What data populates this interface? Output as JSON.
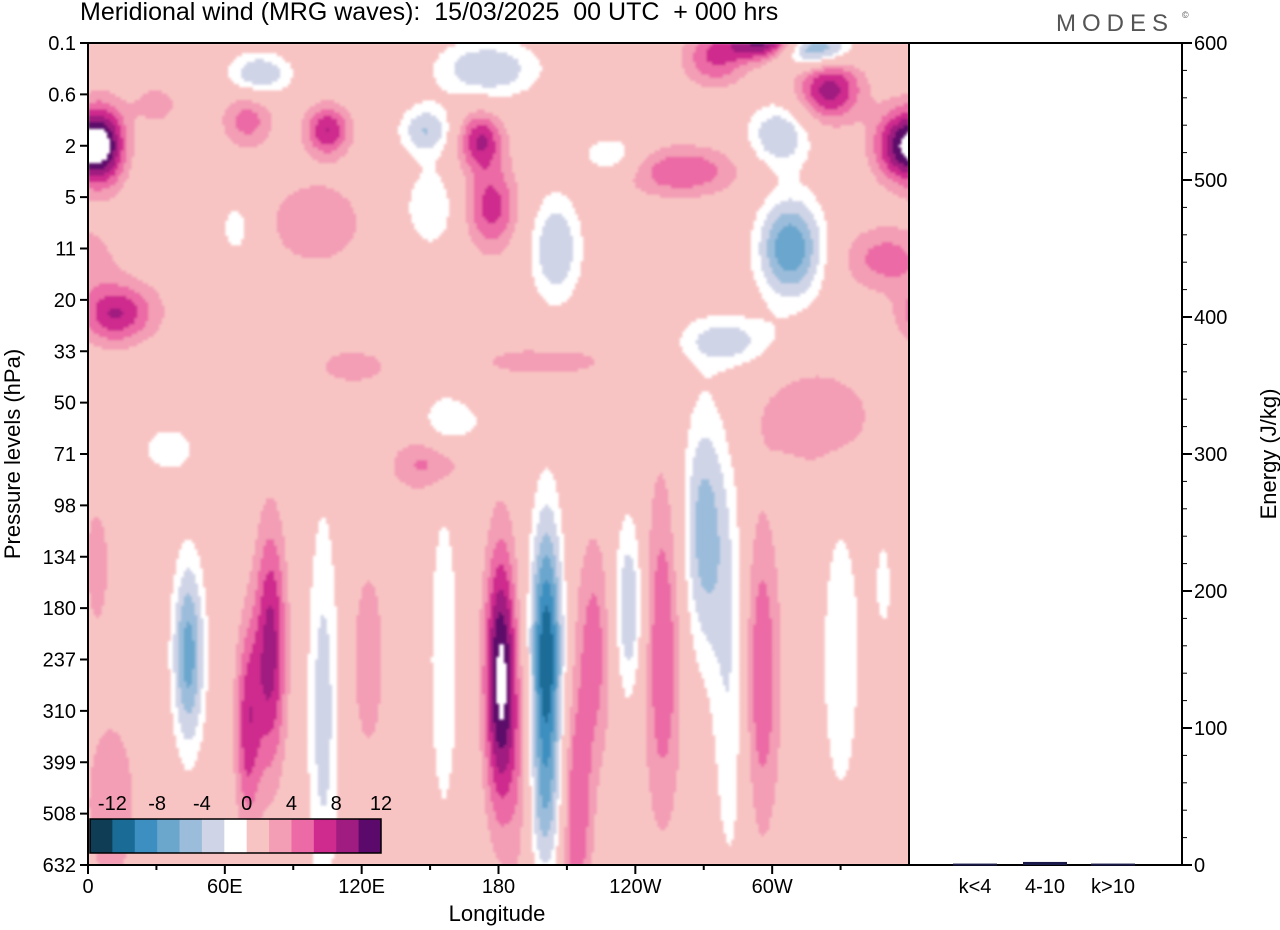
{
  "title": "Meridional wind (MRG waves):  15/03/2025  00 UTC  + 000 hrs",
  "logo": "MODES",
  "logo_mark": "©",
  "colors": {
    "neg": [
      "#0f3d55",
      "#1a6c97",
      "#3c8fc0",
      "#6ba6cd",
      "#9bbddb",
      "#d0d4e7"
    ],
    "zero": "#ffffff",
    "pos": [
      "#f8c4c3",
      "#f39eb5",
      "#ec6aa5",
      "#cf2b8e",
      "#a11c80",
      "#5b0a6b"
    ]
  },
  "chart_data": [
    {
      "type": "heatmap",
      "title": "Meridional wind (MRG waves):  15/03/2025  00 UTC  + 000 hrs",
      "xlabel": "Longitude",
      "ylabel": "Pressure levels (hPa)",
      "x_ticks": [
        "0",
        "60E",
        "120E",
        "180",
        "120W",
        "60W"
      ],
      "x_tick_degrees": [
        0,
        60,
        120,
        180,
        240,
        300
      ],
      "xlim": [
        0,
        360
      ],
      "y_ticks": [
        "0.1",
        "0.6",
        "2",
        "5",
        "11",
        "20",
        "33",
        "50",
        "71",
        "98",
        "134",
        "180",
        "237",
        "310",
        "399",
        "508",
        "632"
      ],
      "colorbar_labels": [
        "-12",
        "-8",
        "-4",
        "0",
        "4",
        "8",
        "12"
      ],
      "colorbar_levels": [
        -14,
        -12,
        -10,
        -8,
        -6,
        -4,
        -2,
        2,
        4,
        6,
        8,
        10,
        12,
        14
      ],
      "features": [
        {
          "lon": 7,
          "lev": 2.0,
          "v": 11,
          "w": 7,
          "h": 0.55
        },
        {
          "lon": 20,
          "lev": 5.2,
          "v": 3,
          "w": 12,
          "h": 0.45
        },
        {
          "lon": 30,
          "lev": 1.2,
          "v": 3,
          "w": 8,
          "h": 0.3
        },
        {
          "lon": 70,
          "lev": 1.5,
          "v": 5,
          "w": 8,
          "h": 0.4
        },
        {
          "lon": 105,
          "lev": 1.7,
          "v": 8,
          "w": 7,
          "h": 0.35
        },
        {
          "lon": 172,
          "lev": 1.9,
          "v": 8,
          "w": 7,
          "h": 0.4
        },
        {
          "lon": 177,
          "lev": 3.2,
          "v": 7,
          "w": 8,
          "h": 0.6
        },
        {
          "lon": 260,
          "lev": 2.5,
          "v": 6,
          "w": 18,
          "h": 0.35
        },
        {
          "lon": 325,
          "lev": 0.9,
          "v": 9,
          "w": 10,
          "h": 0.45
        },
        {
          "lon": 355,
          "lev": 2.0,
          "v": 9,
          "w": 8,
          "h": 0.5
        },
        {
          "lon": 300,
          "lev": 0.0,
          "v": 14,
          "w": 12,
          "h": 0.25
        },
        {
          "lon": 275,
          "lev": 0.3,
          "v": 6,
          "w": 10,
          "h": 0.4
        },
        {
          "lon": 100,
          "lev": 3.5,
          "v": 4,
          "w": 15,
          "h": 0.6
        },
        {
          "lon": 350,
          "lev": 4.2,
          "v": 5,
          "w": 14,
          "h": 0.45
        },
        {
          "lon": 10,
          "lev": 5.3,
          "v": 6,
          "w": 10,
          "h": 0.4
        },
        {
          "lon": 115,
          "lev": 6.3,
          "v": 3,
          "w": 15,
          "h": 0.3
        },
        {
          "lon": 200,
          "lev": 6.2,
          "v": 3,
          "w": 25,
          "h": 0.25
        },
        {
          "lon": 320,
          "lev": 7.3,
          "v": 4,
          "w": 18,
          "h": 0.7
        },
        {
          "lon": 150,
          "lev": 8.2,
          "v": 5,
          "w": 12,
          "h": 0.4
        },
        {
          "lon": 60,
          "lev": 6.2,
          "v": 1.5,
          "w": 10,
          "h": 0.3
        },
        {
          "lon": 75,
          "lev": 0.6,
          "v": -6,
          "w": 10,
          "h": 0.3
        },
        {
          "lon": 175,
          "lev": 0.5,
          "v": -6,
          "w": 16,
          "h": 0.4
        },
        {
          "lon": 148,
          "lev": 1.7,
          "v": -6,
          "w": 8,
          "h": 0.35
        },
        {
          "lon": 205,
          "lev": 4.0,
          "v": -6,
          "w": 8,
          "h": 0.75
        },
        {
          "lon": 150,
          "lev": 3.2,
          "v": -4,
          "w": 8,
          "h": 0.55
        },
        {
          "lon": 315,
          "lev": 0.1,
          "v": -13,
          "w": 12,
          "h": 0.25
        },
        {
          "lon": 303,
          "lev": 1.8,
          "v": -6,
          "w": 10,
          "h": 0.45
        },
        {
          "lon": 308,
          "lev": 4.0,
          "v": -10,
          "w": 10,
          "h": 0.7
        },
        {
          "lon": 230,
          "lev": 2.2,
          "v": -4,
          "w": 10,
          "h": 0.3
        },
        {
          "lon": 65,
          "lev": 3.6,
          "v": -3,
          "w": 6,
          "h": 0.45
        },
        {
          "lon": 280,
          "lev": 5.8,
          "v": -5,
          "w": 15,
          "h": 0.35
        },
        {
          "lon": 35,
          "lev": 7.9,
          "v": -3,
          "w": 10,
          "h": 0.4
        },
        {
          "lon": 160,
          "lev": 7.4,
          "v": -3,
          "w": 12,
          "h": 0.4
        },
        {
          "lon": 270,
          "lev": 9.5,
          "v": -7,
          "w": 7,
          "h": 1.7
        },
        {
          "lon": 282,
          "lev": 12.5,
          "v": -4,
          "w": 6,
          "h": 2.8
        },
        {
          "lon": 44,
          "lev": 11.9,
          "v": -9,
          "w": 5,
          "h": 1.3
        },
        {
          "lon": 80,
          "lev": 11.8,
          "v": 9,
          "w": 5,
          "h": 1.7
        },
        {
          "lon": 70,
          "lev": 13.3,
          "v": 7,
          "w": 4,
          "h": 1.4
        },
        {
          "lon": 103,
          "lev": 13.0,
          "v": -5,
          "w": 5,
          "h": 2.8
        },
        {
          "lon": 123,
          "lev": 12.0,
          "v": 4,
          "w": 5,
          "h": 1.3
        },
        {
          "lon": 181,
          "lev": 12.4,
          "v": 13,
          "w": 5,
          "h": 1.8
        },
        {
          "lon": 201,
          "lev": 12.0,
          "v": -14,
          "w": 5,
          "h": 1.9
        },
        {
          "lon": 200,
          "lev": 15.0,
          "v": -4,
          "w": 6,
          "h": 1.0
        },
        {
          "lon": 214,
          "lev": 15.0,
          "v": 6,
          "w": 5,
          "h": 1.6
        },
        {
          "lon": 222,
          "lev": 11.8,
          "v": 5,
          "w": 6,
          "h": 1.6
        },
        {
          "lon": 237,
          "lev": 11.0,
          "v": -6,
          "w": 5,
          "h": 1.3
        },
        {
          "lon": 252,
          "lev": 11.8,
          "v": 6,
          "w": 6,
          "h": 2.4
        },
        {
          "lon": 295,
          "lev": 12.3,
          "v": 6,
          "w": 6,
          "h": 2.2
        },
        {
          "lon": 330,
          "lev": 12.0,
          "v": -4,
          "w": 6,
          "h": 2.0
        },
        {
          "lon": 156,
          "lev": 12.0,
          "v": -3,
          "w": 6,
          "h": 3.0
        },
        {
          "lon": 10,
          "lev": 14.8,
          "v": 4,
          "w": 8,
          "h": 1.2
        },
        {
          "lon": 3,
          "lev": 10.2,
          "v": 3,
          "w": 6,
          "h": 1.2
        },
        {
          "lon": 190,
          "lev": 14.5,
          "v": 3,
          "w": 4,
          "h": 1.6
        },
        {
          "lon": 350,
          "lev": 10.5,
          "v": -2.5,
          "w": 6,
          "h": 1.3
        }
      ]
    },
    {
      "type": "bar",
      "ylabel": "Energy (J/kg)",
      "categories": [
        "k<4",
        "4-10",
        "k>10"
      ],
      "values": [
        0.3,
        1.5,
        0.3
      ],
      "ylim": [
        0,
        600
      ],
      "y_ticks": [
        0,
        100,
        200,
        300,
        400,
        500,
        600
      ]
    }
  ]
}
